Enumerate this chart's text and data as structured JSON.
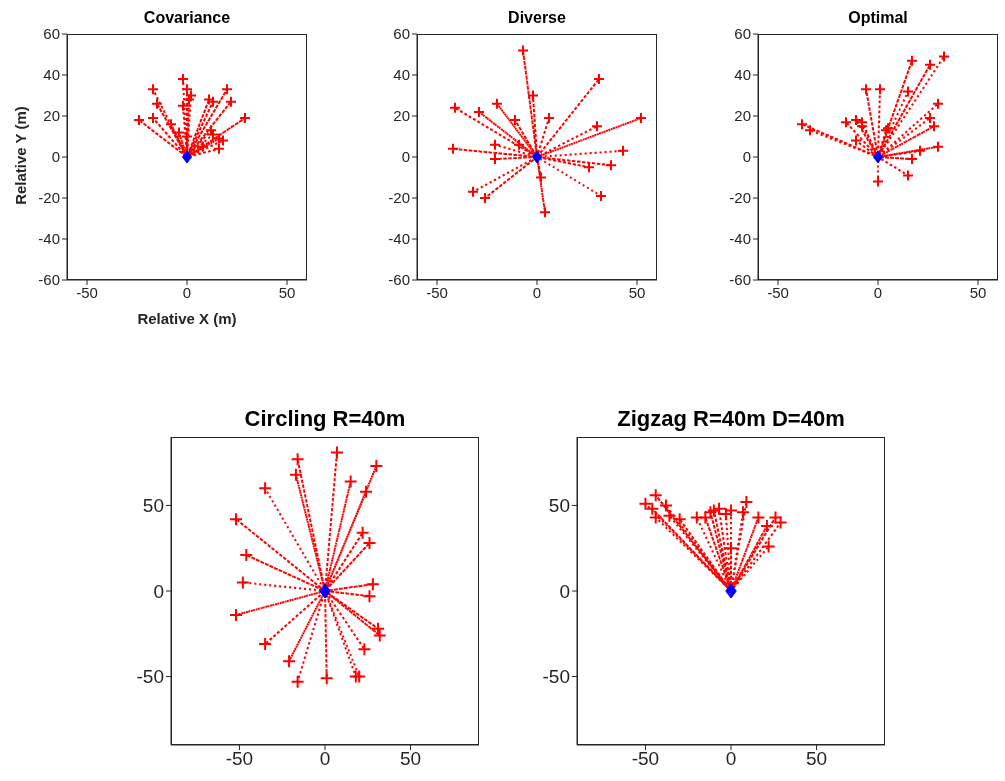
{
  "chart_data": [
    {
      "type": "scatter",
      "title": "Covariance",
      "xlabel": "Relative X (m)",
      "ylabel": "Relative Y (m)",
      "xlim": [
        -60,
        60
      ],
      "ylim": [
        -60,
        60
      ],
      "xticks": [
        -50,
        0,
        50
      ],
      "yticks": [
        -60,
        -40,
        -20,
        0,
        20,
        40,
        60
      ],
      "series": [
        {
          "type": "line",
          "color": "#ff0000",
          "line_style": "dotted",
          "marker": "none",
          "x": [
            0,
            -17,
            0,
            -15,
            0,
            -24,
            0,
            -17,
            0,
            -8,
            0,
            -4,
            0,
            -2,
            0,
            0,
            0,
            2,
            0,
            1,
            0,
            -2,
            0,
            0,
            0,
            11,
            0,
            13,
            0,
            20,
            0,
            22,
            0,
            29,
            0,
            12,
            0,
            13,
            0,
            16,
            0,
            18,
            0,
            16,
            0,
            8
          ],
          "values": [
            0,
            33,
            0,
            26,
            0,
            18,
            0,
            19,
            0,
            16,
            0,
            12,
            0,
            38,
            0,
            33,
            0,
            30,
            0,
            28,
            0,
            25,
            0,
            10,
            0,
            28,
            0,
            27,
            0,
            33,
            0,
            27,
            0,
            19,
            0,
            13,
            0,
            11,
            0,
            9,
            0,
            8,
            0,
            4,
            0,
            5
          ]
        },
        {
          "type": "scatter",
          "color": "#ff0000",
          "marker": "cross",
          "x": [
            -17,
            -15,
            -24,
            -17,
            -8,
            -4,
            -2,
            0,
            2,
            1,
            -2,
            0,
            11,
            13,
            20,
            22,
            29,
            12,
            13,
            16,
            18,
            16,
            8
          ],
          "values": [
            33,
            26,
            18,
            19,
            16,
            12,
            38,
            33,
            30,
            28,
            25,
            10,
            28,
            27,
            33,
            27,
            19,
            13,
            11,
            9,
            8,
            4,
            5
          ]
        },
        {
          "type": "scatter",
          "color": "#0000ff",
          "marker": "diamond",
          "x": [
            0
          ],
          "values": [
            0
          ]
        }
      ]
    },
    {
      "type": "scatter",
      "title": "Diverse",
      "xlim": [
        -60,
        60
      ],
      "ylim": [
        -60,
        60
      ],
      "xticks": [
        -50,
        0,
        50
      ],
      "yticks": [
        -60,
        -40,
        -20,
        0,
        20,
        40,
        60
      ],
      "series": [
        {
          "type": "line",
          "color": "#ff0000",
          "line_style": "dotted",
          "marker": "none",
          "x": [
            0,
            -7,
            0,
            -2,
            0,
            31,
            0,
            -41,
            0,
            -29,
            0,
            -20,
            0,
            -11,
            0,
            6,
            0,
            30,
            0,
            52,
            0,
            -42,
            0,
            -21,
            0,
            -9,
            0,
            -21,
            0,
            43,
            0,
            37,
            0,
            26,
            0,
            2,
            0,
            4,
            0,
            -32,
            0,
            -26,
            0,
            32
          ],
          "values": [
            0,
            52,
            0,
            30,
            0,
            38,
            0,
            24,
            0,
            22,
            0,
            26,
            0,
            18,
            0,
            19,
            0,
            15,
            0,
            19,
            0,
            4,
            0,
            6,
            0,
            6,
            0,
            -1,
            0,
            3,
            0,
            -4,
            0,
            -5,
            0,
            -10,
            0,
            -27,
            0,
            -17,
            0,
            -20,
            0,
            -19
          ]
        },
        {
          "type": "scatter",
          "color": "#ff0000",
          "marker": "cross",
          "x": [
            -7,
            -2,
            31,
            -41,
            -29,
            -20,
            -11,
            6,
            30,
            52,
            -42,
            -21,
            -9,
            -21,
            43,
            37,
            26,
            2,
            4,
            -32,
            -26,
            32
          ],
          "values": [
            52,
            30,
            38,
            24,
            22,
            26,
            18,
            19,
            15,
            19,
            4,
            6,
            6,
            -1,
            3,
            -4,
            -5,
            -10,
            -27,
            -17,
            -20,
            -19
          ]
        },
        {
          "type": "scatter",
          "color": "#0000ff",
          "marker": "diamond",
          "x": [
            0
          ],
          "values": [
            0
          ]
        }
      ]
    },
    {
      "type": "scatter",
      "title": "Optimal",
      "xlim": [
        -60,
        60
      ],
      "ylim": [
        -60,
        60
      ],
      "xticks": [
        -50,
        0,
        50
      ],
      "yticks": [
        -60,
        -40,
        -20,
        0,
        20,
        40,
        60
      ],
      "series": [
        {
          "type": "line",
          "color": "#ff0000",
          "line_style": "dotted",
          "marker": "none",
          "x": [
            0,
            -38,
            0,
            -34,
            0,
            -16,
            0,
            -11,
            0,
            -8,
            0,
            -8,
            0,
            -11,
            0,
            -6,
            0,
            1,
            0,
            4,
            0,
            5,
            0,
            17,
            0,
            26,
            0,
            33,
            0,
            15,
            0,
            30,
            0,
            26,
            0,
            28,
            0,
            30,
            0,
            21,
            0,
            17,
            0,
            15,
            0,
            0
          ],
          "values": [
            0,
            16,
            0,
            13,
            0,
            17,
            0,
            18,
            0,
            17,
            0,
            15,
            0,
            8,
            0,
            33,
            0,
            33,
            0,
            13,
            0,
            14,
            0,
            47,
            0,
            45,
            0,
            49,
            0,
            32,
            0,
            26,
            0,
            19,
            0,
            15,
            0,
            5,
            0,
            3,
            0,
            -1,
            0,
            -9,
            0,
            -12
          ]
        },
        {
          "type": "scatter",
          "color": "#ff0000",
          "marker": "cross",
          "x": [
            -38,
            -34,
            -16,
            -11,
            -8,
            -8,
            -11,
            -6,
            1,
            4,
            5,
            17,
            26,
            33,
            15,
            30,
            26,
            28,
            30,
            21,
            17,
            15,
            0
          ],
          "values": [
            16,
            13,
            17,
            18,
            17,
            15,
            8,
            33,
            33,
            13,
            14,
            47,
            45,
            49,
            32,
            26,
            19,
            15,
            5,
            3,
            -1,
            -9,
            -12
          ]
        },
        {
          "type": "scatter",
          "color": "#0000ff",
          "marker": "diamond",
          "x": [
            0
          ],
          "values": [
            0
          ]
        }
      ]
    },
    {
      "type": "scatter",
      "title": "Circling R=40m",
      "xlim": [
        -90,
        90
      ],
      "ylim": [
        -90,
        90
      ],
      "xticks": [
        -50,
        0,
        50
      ],
      "yticks": [
        -50,
        0,
        50
      ],
      "series": [
        {
          "type": "line",
          "color": "#ff0000",
          "line_style": "dotted",
          "marker": "none",
          "x": [
            0,
            7,
            0,
            -16,
            0,
            -17,
            0,
            30,
            0,
            15,
            0,
            24,
            0,
            -35,
            0,
            -52,
            0,
            22,
            0,
            26,
            0,
            -46,
            0,
            -48,
            0,
            28,
            0,
            26,
            0,
            -52,
            0,
            31,
            0,
            32,
            0,
            -35,
            0,
            23,
            0,
            -21,
            0,
            -16,
            0,
            1,
            0,
            18,
            0,
            20
          ],
          "values": [
            0,
            81,
            0,
            77,
            0,
            68,
            0,
            73,
            0,
            64,
            0,
            58,
            0,
            60,
            0,
            42,
            0,
            34,
            0,
            28,
            0,
            21,
            0,
            5,
            0,
            4,
            0,
            -3,
            0,
            -14,
            0,
            -22,
            0,
            -26,
            0,
            -31,
            0,
            -34,
            0,
            -41,
            0,
            -53,
            0,
            -51,
            0,
            -50,
            0,
            -50
          ]
        },
        {
          "type": "scatter",
          "color": "#ff0000",
          "marker": "cross",
          "x": [
            7,
            -16,
            -17,
            30,
            15,
            24,
            -35,
            -52,
            22,
            26,
            -46,
            -48,
            28,
            26,
            -52,
            31,
            32,
            -35,
            23,
            -21,
            -16,
            1,
            18,
            20
          ],
          "values": [
            81,
            77,
            68,
            73,
            64,
            58,
            60,
            42,
            34,
            28,
            21,
            5,
            4,
            -3,
            -14,
            -22,
            -26,
            -31,
            -34,
            -41,
            -53,
            -51,
            -50,
            -50
          ]
        },
        {
          "type": "scatter",
          "color": "#0000ff",
          "marker": "diamond",
          "x": [
            0
          ],
          "values": [
            0
          ]
        }
      ]
    },
    {
      "type": "scatter",
      "title": "Zigzag R=40m D=40m",
      "xlim": [
        -90,
        90
      ],
      "ylim": [
        -90,
        90
      ],
      "xticks": [
        -50,
        0,
        50
      ],
      "yticks": [
        -50,
        0,
        50
      ],
      "series": [
        {
          "type": "line",
          "color": "#ff0000",
          "line_style": "dotted",
          "marker": "none",
          "x": [
            0,
            -44,
            0,
            -50,
            0,
            -46,
            0,
            -44,
            0,
            -38,
            0,
            -36,
            0,
            -30,
            0,
            -20,
            0,
            -15,
            0,
            -12,
            0,
            -10,
            0,
            -7,
            0,
            -3,
            0,
            0,
            0,
            7,
            0,
            9,
            0,
            16,
            0,
            21,
            0,
            26,
            0,
            29,
            0,
            22,
            0,
            0
          ],
          "values": [
            0,
            56,
            0,
            51,
            0,
            48,
            0,
            43,
            0,
            50,
            0,
            44,
            0,
            42,
            0,
            43,
            0,
            43,
            0,
            46,
            0,
            47,
            0,
            48,
            0,
            45,
            0,
            47,
            0,
            46,
            0,
            52,
            0,
            43,
            0,
            38,
            0,
            43,
            0,
            40,
            0,
            26,
            0,
            25
          ]
        },
        {
          "type": "scatter",
          "color": "#ff0000",
          "marker": "cross",
          "x": [
            -44,
            -50,
            -46,
            -44,
            -38,
            -36,
            -30,
            -20,
            -15,
            -12,
            -10,
            -7,
            -3,
            0,
            7,
            9,
            16,
            21,
            26,
            29,
            22,
            0
          ],
          "values": [
            56,
            51,
            48,
            43,
            50,
            44,
            42,
            43,
            43,
            46,
            47,
            48,
            45,
            47,
            46,
            52,
            43,
            38,
            43,
            40,
            26,
            25
          ]
        },
        {
          "type": "scatter",
          "color": "#0000ff",
          "marker": "diamond",
          "x": [
            0
          ],
          "values": [
            0
          ]
        }
      ]
    }
  ]
}
